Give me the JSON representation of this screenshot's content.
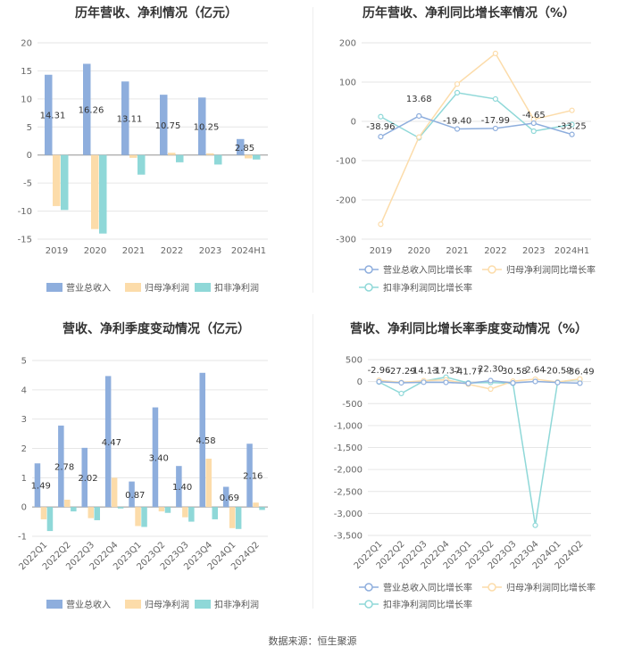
{
  "colors": {
    "revenue": "#8eaedd",
    "net_profit": "#fcdcaa",
    "deducted_profit": "#8fd8d8",
    "grid": "#e6e6e6",
    "axis_text": "#666666",
    "label_text": "#333333"
  },
  "source": "数据来源：恒生聚源",
  "chart_data": [
    {
      "id": "annual-bar",
      "type": "bar",
      "title": "历年营收、净利情况（亿元）",
      "categories": [
        "2019",
        "2020",
        "2021",
        "2022",
        "2023",
        "2024H1"
      ],
      "ylim": [
        -15,
        20
      ],
      "yticks": [
        20,
        15,
        10,
        5,
        0,
        -5,
        -10,
        -15
      ],
      "series": [
        {
          "name": "营业总收入",
          "color_key": "revenue",
          "values": [
            14.31,
            16.26,
            13.11,
            10.75,
            10.25,
            2.85
          ],
          "labels": [
            "14.31",
            "16.26",
            "13.11",
            "10.75",
            "10.25",
            "2.85"
          ]
        },
        {
          "name": "归母净利润",
          "color_key": "net_profit",
          "values": [
            -9.1,
            -13.2,
            -0.5,
            0.4,
            0.3,
            -0.6
          ]
        },
        {
          "name": "扣非净利润",
          "color_key": "deducted_profit",
          "values": [
            -9.8,
            -14.0,
            -3.5,
            -1.3,
            -1.7,
            -0.8
          ]
        }
      ],
      "legend_position": "bottom"
    },
    {
      "id": "annual-growth",
      "type": "line",
      "title": "历年营收、净利同比增长率情况（%）",
      "categories": [
        "2019",
        "2020",
        "2021",
        "2022",
        "2023",
        "2024H1"
      ],
      "ylim": [
        -300,
        200
      ],
      "yticks": [
        200,
        100,
        0,
        -100,
        -200,
        -300
      ],
      "series": [
        {
          "name": "营业总收入同比增长率",
          "color_key": "revenue",
          "values": [
            -38.96,
            13.68,
            -19.4,
            -17.99,
            -4.65,
            -33.25
          ],
          "labels": [
            "-38.96",
            "13.68",
            "-19.40",
            "-17.99",
            "-4.65",
            "-33.25"
          ]
        },
        {
          "name": "归母净利润同比增长率",
          "color_key": "net_profit",
          "values": [
            -262,
            -40,
            95,
            173,
            5,
            28
          ]
        },
        {
          "name": "扣非净利润同比增长率",
          "color_key": "deducted_profit",
          "values": [
            12,
            -42,
            73,
            57,
            -25,
            -8
          ]
        }
      ],
      "legend_position": "bottom"
    },
    {
      "id": "quarterly-bar",
      "type": "bar",
      "title": "营收、净利季度变动情况（亿元）",
      "categories": [
        "2022Q1",
        "2022Q2",
        "2022Q3",
        "2022Q4",
        "2023Q1",
        "2023Q2",
        "2023Q3",
        "2023Q4",
        "2024Q1",
        "2024Q2"
      ],
      "ylim": [
        -1,
        5
      ],
      "yticks": [
        5,
        4,
        3,
        2,
        1,
        0,
        -1
      ],
      "series": [
        {
          "name": "营业总收入",
          "color_key": "revenue",
          "values": [
            1.49,
            2.78,
            2.02,
            4.47,
            0.87,
            3.4,
            1.4,
            4.58,
            0.69,
            2.16
          ],
          "labels": [
            "1.49",
            "2.78",
            "2.02",
            "4.47",
            "0.87",
            "3.40",
            "1.40",
            "4.58",
            "0.69",
            "2.16"
          ]
        },
        {
          "name": "归母净利润",
          "color_key": "net_profit",
          "values": [
            -0.42,
            0.25,
            -0.38,
            1.0,
            -0.65,
            -0.15,
            -0.35,
            1.65,
            -0.72,
            0.15
          ]
        },
        {
          "name": "扣非净利润",
          "color_key": "deducted_profit",
          "values": [
            -0.82,
            -0.15,
            -0.45,
            -0.05,
            -0.68,
            -0.2,
            -0.5,
            -0.42,
            -0.75,
            -0.1
          ]
        }
      ],
      "legend_position": "bottom"
    },
    {
      "id": "quarterly-growth",
      "type": "line",
      "title": "营收、净利同比增长率季度变动情况（%）",
      "categories": [
        "2022Q1",
        "2022Q2",
        "2022Q3",
        "2022Q4",
        "2023Q1",
        "2023Q2",
        "2023Q3",
        "2023Q4",
        "2024Q1",
        "2024Q2"
      ],
      "ylim": [
        -3500,
        500
      ],
      "yticks": [
        500,
        0,
        -500,
        -1000,
        -1500,
        -2000,
        -2500,
        -3000,
        -3500
      ],
      "ytick_labels": [
        "500",
        "0",
        "-500",
        "-1,000",
        "-1,500",
        "-2,000",
        "-2,500",
        "-3,000",
        "-3,500"
      ],
      "series": [
        {
          "name": "营业总收入同比增长率",
          "color_key": "revenue",
          "values": [
            -2.96,
            -27.29,
            -14.13,
            -17.37,
            -41.77,
            22.3,
            -30.58,
            2.64,
            -20.59,
            -36.49
          ],
          "labels": [
            "-2.96",
            "-27.29",
            "-14.13",
            "-17.37",
            "-41.77",
            "22.30",
            "-30.58",
            "2.64",
            "-20.59",
            "-36.49"
          ]
        },
        {
          "name": "归母净利润同比增长率",
          "color_key": "net_profit",
          "values": [
            30,
            -20,
            20,
            40,
            -60,
            -170,
            10,
            55,
            -10,
            60
          ]
        },
        {
          "name": "扣非净利润同比增长率",
          "color_key": "deducted_profit",
          "values": [
            -10,
            -270,
            10,
            100,
            -30,
            -20,
            -40,
            -3270,
            -10,
            50
          ]
        }
      ],
      "legend_position": "bottom"
    }
  ]
}
